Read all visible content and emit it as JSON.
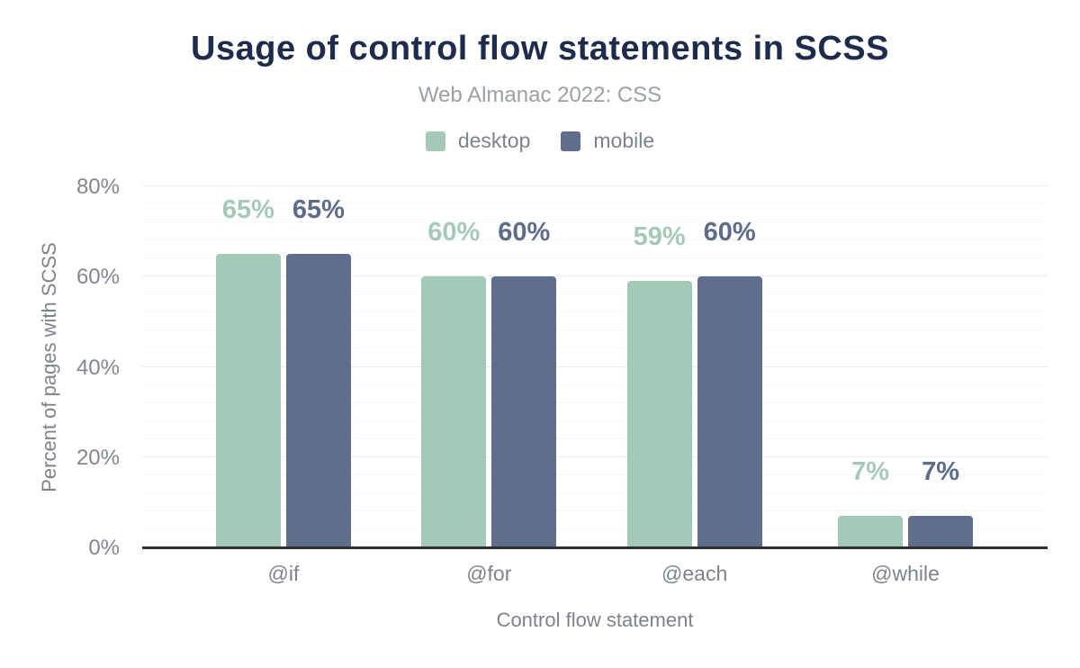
{
  "header": {
    "title": "Usage of control flow statements in SCSS",
    "subtitle": "Web Almanac 2022: CSS"
  },
  "colors": {
    "title_text": "#1d2b4d",
    "subtitle_text": "#9aa0a4",
    "axis_text": "#7d828c",
    "tick_text": "#81868f",
    "desktop": "#a5c9b8",
    "mobile": "#5f6e8c",
    "desktop_label_text": "#a5c9b8",
    "mobile_label_text": "#5d6c8a",
    "axis_line": "#2d2f33",
    "gridline_major": "#ececec",
    "gridline_minor": "#f6f6f6"
  },
  "chart_data": {
    "type": "bar",
    "title": "Usage of control flow statements in SCSS",
    "subtitle": "Web Almanac 2022: CSS",
    "categories": [
      "@if",
      "@for",
      "@each",
      "@while"
    ],
    "series": [
      {
        "name": "desktop",
        "color": "#a5c9b8",
        "label_color": "#a5c9b8",
        "values": [
          65,
          60,
          59,
          7
        ],
        "labels": [
          "65%",
          "60%",
          "59%",
          "7%"
        ]
      },
      {
        "name": "mobile",
        "color": "#5f6e8c",
        "label_color": "#5d6c8a",
        "values": [
          65,
          60,
          60,
          7
        ],
        "labels": [
          "65%",
          "60%",
          "60%",
          "7%"
        ]
      }
    ],
    "xlabel": "Control flow statement",
    "ylabel": "Percent of pages with SCSS",
    "ylim": [
      0,
      80
    ],
    "yticks": [
      {
        "value": 0,
        "label": "0%"
      },
      {
        "value": 20,
        "label": "20%"
      },
      {
        "value": 40,
        "label": "40%"
      },
      {
        "value": 60,
        "label": "60%"
      },
      {
        "value": 80,
        "label": "80%"
      }
    ],
    "minor_tick_step": 4,
    "grid": true,
    "legend_position": "top"
  }
}
